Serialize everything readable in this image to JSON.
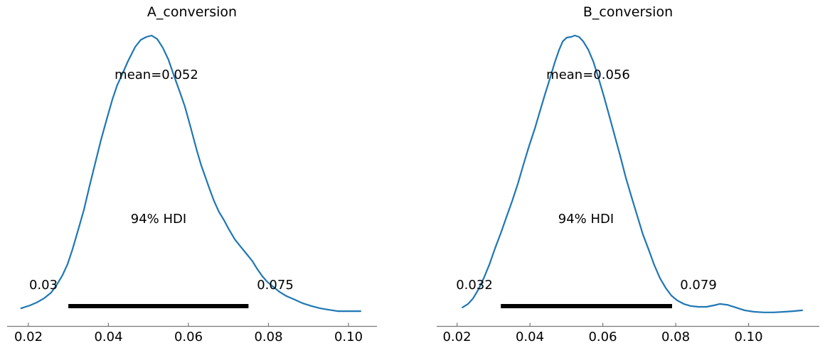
{
  "figure": {
    "background": "#ffffff",
    "axis_color": "#777777",
    "text_color": "#000000",
    "hdi_bar_color": "#000000"
  },
  "chart_data": [
    {
      "type": "area",
      "subtype": "kde-posterior",
      "title": "A_conversion",
      "mean": 0.052,
      "mean_label": "mean=0.052",
      "hdi_label": "94% HDI",
      "hdi_low": 0.03,
      "hdi_high": 0.075,
      "hdi_low_label": "0.03",
      "hdi_high_label": "0.075",
      "line_color": "#1f77b4",
      "xticks": [
        0.02,
        0.04,
        0.06,
        0.08,
        0.1
      ],
      "xtick_labels": [
        "0.02",
        "0.04",
        "0.06",
        "0.08",
        "0.10"
      ],
      "xlim": [
        0.0147,
        0.1071
      ],
      "grid": false,
      "legend": null,
      "density_points": [
        [
          0.0182,
          0.061
        ],
        [
          0.0204,
          0.071
        ],
        [
          0.0221,
          0.081
        ],
        [
          0.0239,
          0.095
        ],
        [
          0.0257,
          0.115
        ],
        [
          0.0271,
          0.142
        ],
        [
          0.0285,
          0.174
        ],
        [
          0.0298,
          0.213
        ],
        [
          0.031,
          0.262
        ],
        [
          0.0324,
          0.328
        ],
        [
          0.0339,
          0.401
        ],
        [
          0.0353,
          0.482
        ],
        [
          0.0367,
          0.56
        ],
        [
          0.0381,
          0.638
        ],
        [
          0.0396,
          0.712
        ],
        [
          0.041,
          0.78
        ],
        [
          0.0422,
          0.829
        ],
        [
          0.0435,
          0.868
        ],
        [
          0.0449,
          0.912
        ],
        [
          0.0467,
          0.961
        ],
        [
          0.0481,
          0.985
        ],
        [
          0.0495,
          0.995
        ],
        [
          0.0508,
          1.0
        ],
        [
          0.0522,
          0.988
        ],
        [
          0.0536,
          0.958
        ],
        [
          0.055,
          0.917
        ],
        [
          0.0564,
          0.861
        ],
        [
          0.0579,
          0.804
        ],
        [
          0.0591,
          0.756
        ],
        [
          0.0605,
          0.687
        ],
        [
          0.062,
          0.609
        ],
        [
          0.0632,
          0.553
        ],
        [
          0.0641,
          0.518
        ],
        [
          0.0651,
          0.479
        ],
        [
          0.0664,
          0.43
        ],
        [
          0.0676,
          0.394
        ],
        [
          0.0689,
          0.364
        ],
        [
          0.0701,
          0.333
        ],
        [
          0.0716,
          0.298
        ],
        [
          0.073,
          0.274
        ],
        [
          0.0746,
          0.247
        ],
        [
          0.076,
          0.223
        ],
        [
          0.0772,
          0.196
        ],
        [
          0.0785,
          0.171
        ],
        [
          0.0797,
          0.152
        ],
        [
          0.0812,
          0.135
        ],
        [
          0.0828,
          0.117
        ],
        [
          0.0845,
          0.103
        ],
        [
          0.0865,
          0.091
        ],
        [
          0.0886,
          0.078
        ],
        [
          0.0907,
          0.069
        ],
        [
          0.0929,
          0.061
        ],
        [
          0.095,
          0.056
        ],
        [
          0.0973,
          0.051
        ],
        [
          0.0996,
          0.051
        ],
        [
          0.1018,
          0.051
        ],
        [
          0.103,
          0.051
        ]
      ]
    },
    {
      "type": "area",
      "subtype": "kde-posterior",
      "title": "B_conversion",
      "mean": 0.056,
      "mean_label": "mean=0.056",
      "hdi_label": "94% HDI",
      "hdi_low": 0.032,
      "hdi_high": 0.079,
      "hdi_low_label": "0.032",
      "hdi_high_label": "0.079",
      "line_color": "#1f77b4",
      "xticks": [
        0.02,
        0.04,
        0.06,
        0.08,
        0.1
      ],
      "xtick_labels": [
        "0.02",
        "0.04",
        "0.06",
        "0.08",
        "0.10"
      ],
      "xlim": [
        0.0144,
        0.1194
      ],
      "grid": false,
      "legend": null,
      "density_points": [
        [
          0.0215,
          0.064
        ],
        [
          0.023,
          0.076
        ],
        [
          0.0244,
          0.095
        ],
        [
          0.0258,
          0.125
        ],
        [
          0.0273,
          0.164
        ],
        [
          0.0289,
          0.213
        ],
        [
          0.0304,
          0.267
        ],
        [
          0.032,
          0.32
        ],
        [
          0.0336,
          0.377
        ],
        [
          0.0351,
          0.43
        ],
        [
          0.0367,
          0.491
        ],
        [
          0.0382,
          0.555
        ],
        [
          0.0398,
          0.621
        ],
        [
          0.0414,
          0.682
        ],
        [
          0.0427,
          0.738
        ],
        [
          0.0441,
          0.797
        ],
        [
          0.0455,
          0.853
        ],
        [
          0.0468,
          0.907
        ],
        [
          0.048,
          0.951
        ],
        [
          0.049,
          0.98
        ],
        [
          0.0501,
          0.993
        ],
        [
          0.0513,
          0.995
        ],
        [
          0.0523,
          1.0
        ],
        [
          0.0535,
          0.995
        ],
        [
          0.0546,
          0.98
        ],
        [
          0.056,
          0.951
        ],
        [
          0.0574,
          0.91
        ],
        [
          0.0587,
          0.858
        ],
        [
          0.0603,
          0.79
        ],
        [
          0.0617,
          0.726
        ],
        [
          0.0632,
          0.658
        ],
        [
          0.0648,
          0.584
        ],
        [
          0.0663,
          0.511
        ],
        [
          0.0679,
          0.443
        ],
        [
          0.0695,
          0.377
        ],
        [
          0.071,
          0.315
        ],
        [
          0.0726,
          0.262
        ],
        [
          0.0741,
          0.21
        ],
        [
          0.0757,
          0.164
        ],
        [
          0.0773,
          0.13
        ],
        [
          0.0788,
          0.105
        ],
        [
          0.0804,
          0.088
        ],
        [
          0.0822,
          0.076
        ],
        [
          0.0841,
          0.069
        ],
        [
          0.0863,
          0.066
        ],
        [
          0.0884,
          0.066
        ],
        [
          0.0904,
          0.071
        ],
        [
          0.0921,
          0.076
        ],
        [
          0.0941,
          0.073
        ],
        [
          0.0964,
          0.064
        ],
        [
          0.0989,
          0.054
        ],
        [
          0.1015,
          0.049
        ],
        [
          0.1042,
          0.047
        ],
        [
          0.1069,
          0.047
        ],
        [
          0.1097,
          0.049
        ],
        [
          0.1122,
          0.051
        ],
        [
          0.1147,
          0.054
        ]
      ]
    }
  ]
}
